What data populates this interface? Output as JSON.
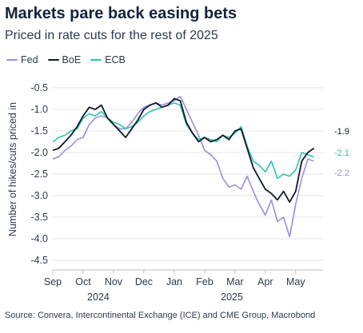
{
  "title": "Markets pare back easing bets",
  "subtitle": "Priced in rate cuts for the rest of 2025",
  "source": "Source: Convera, Intercontinental Exchange (ICE) and CME Group, Macrobond",
  "colors": {
    "Fed": "#9b8fe0",
    "BoE": "#0e1a2b",
    "ECB": "#2cc4ad",
    "grid": "#e3e6ea",
    "axis": "#b8bec6"
  },
  "chart_data": {
    "type": "line",
    "ylabel": "Number of hikes/cuts priced in",
    "ylim": [
      -4.5,
      -0.5
    ],
    "yticks": [
      -0.5,
      -1.0,
      -1.5,
      -2.0,
      -2.5,
      -3.0,
      -3.5,
      -4.0,
      -4.5
    ],
    "ytick_labels": [
      "-0.5",
      "-1.0",
      "-1.5",
      "-2.0",
      "-2.5",
      "-3.0",
      "-3.5",
      "-4.0",
      "-4.5"
    ],
    "xlim": [
      0,
      8.9
    ],
    "xticks": [
      0,
      1,
      2,
      3,
      4,
      5,
      6,
      7,
      8
    ],
    "xtick_labels": [
      "Sep",
      "Oct",
      "Nov",
      "Dec",
      "Jan",
      "Feb",
      "Mar",
      "Apr",
      "May"
    ],
    "year_labels": [
      {
        "label": "2024",
        "at": 1.5
      },
      {
        "label": "2025",
        "at": 5.9
      }
    ],
    "grid": "horizontal",
    "legend": "top-left",
    "end_labels": [
      {
        "series": "BoE",
        "text": "-1.9",
        "value": -1.9
      },
      {
        "series": "ECB",
        "text": "-2.1",
        "value": -2.1
      },
      {
        "series": "Fed",
        "text": "-2.2",
        "value": -2.2
      }
    ],
    "series": [
      {
        "name": "Fed",
        "x": [
          0.0,
          0.2,
          0.4,
          0.6,
          0.8,
          1.0,
          1.2,
          1.4,
          1.6,
          1.8,
          2.0,
          2.2,
          2.4,
          2.6,
          2.8,
          3.0,
          3.2,
          3.4,
          3.6,
          3.8,
          4.0,
          4.2,
          4.4,
          4.6,
          4.8,
          5.0,
          5.2,
          5.4,
          5.6,
          5.8,
          6.0,
          6.2,
          6.4,
          6.6,
          6.8,
          7.0,
          7.2,
          7.4,
          7.6,
          7.8,
          8.0,
          8.2,
          8.4,
          8.6
        ],
        "values": [
          -2.15,
          -2.1,
          -1.95,
          -1.85,
          -1.7,
          -1.65,
          -1.35,
          -1.2,
          -1.15,
          -1.2,
          -1.35,
          -1.45,
          -1.45,
          -1.3,
          -1.1,
          -0.95,
          -0.9,
          -0.85,
          -0.9,
          -0.85,
          -0.8,
          -0.7,
          -1.0,
          -1.3,
          -1.6,
          -1.95,
          -2.05,
          -2.2,
          -2.6,
          -2.8,
          -2.75,
          -2.85,
          -2.55,
          -2.9,
          -3.2,
          -3.45,
          -3.1,
          -3.6,
          -3.5,
          -3.95,
          -3.2,
          -2.6,
          -2.15,
          -2.2
        ]
      },
      {
        "name": "BoE",
        "x": [
          0.0,
          0.2,
          0.4,
          0.6,
          0.8,
          1.0,
          1.2,
          1.4,
          1.6,
          1.8,
          2.0,
          2.2,
          2.4,
          2.6,
          2.8,
          3.0,
          3.2,
          3.4,
          3.6,
          3.8,
          4.0,
          4.2,
          4.4,
          4.6,
          4.8,
          5.0,
          5.2,
          5.4,
          5.6,
          5.8,
          6.0,
          6.2,
          6.4,
          6.6,
          6.8,
          7.0,
          7.2,
          7.4,
          7.6,
          7.8,
          8.0,
          8.2,
          8.4,
          8.6
        ],
        "values": [
          -1.95,
          -1.9,
          -1.75,
          -1.6,
          -1.4,
          -1.15,
          -0.95,
          -1.0,
          -0.9,
          -1.2,
          -1.35,
          -1.5,
          -1.65,
          -1.45,
          -1.25,
          -1.0,
          -0.9,
          -0.85,
          -0.95,
          -0.9,
          -0.75,
          -0.8,
          -1.3,
          -1.55,
          -1.75,
          -1.65,
          -1.75,
          -1.7,
          -1.6,
          -1.7,
          -1.5,
          -1.45,
          -1.9,
          -2.35,
          -2.6,
          -2.85,
          -2.95,
          -3.1,
          -2.9,
          -3.15,
          -2.9,
          -2.2,
          -2.0,
          -1.9
        ]
      },
      {
        "name": "ECB",
        "x": [
          0.0,
          0.2,
          0.4,
          0.6,
          0.8,
          1.0,
          1.2,
          1.4,
          1.6,
          1.8,
          2.0,
          2.2,
          2.4,
          2.6,
          2.8,
          3.0,
          3.2,
          3.4,
          3.6,
          3.8,
          4.0,
          4.2,
          4.4,
          4.6,
          4.8,
          5.0,
          5.2,
          5.4,
          5.6,
          5.8,
          6.0,
          6.2,
          6.4,
          6.6,
          6.8,
          7.0,
          7.2,
          7.4,
          7.6,
          7.8,
          8.0,
          8.2,
          8.4,
          8.6
        ],
        "values": [
          -1.75,
          -1.65,
          -1.6,
          -1.5,
          -1.45,
          -1.2,
          -1.1,
          -1.15,
          -1.05,
          -1.2,
          -1.3,
          -1.35,
          -1.45,
          -1.4,
          -1.3,
          -1.15,
          -1.05,
          -1.0,
          -0.95,
          -0.9,
          -0.85,
          -0.9,
          -1.35,
          -1.55,
          -1.7,
          -1.65,
          -1.7,
          -1.75,
          -1.6,
          -1.65,
          -1.55,
          -1.4,
          -1.85,
          -2.2,
          -2.3,
          -2.45,
          -2.2,
          -2.6,
          -2.5,
          -2.55,
          -2.4,
          -2.0,
          -2.05,
          -2.1
        ]
      }
    ]
  }
}
